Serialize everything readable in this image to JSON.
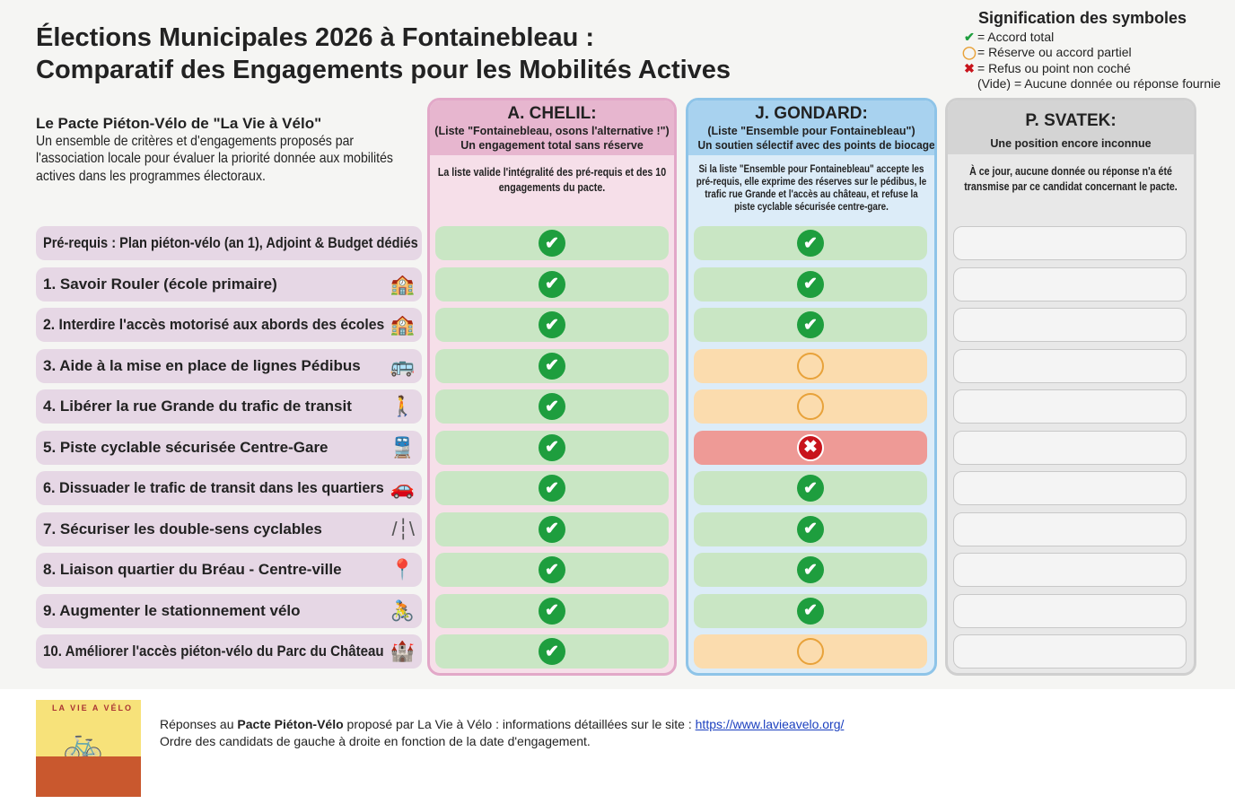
{
  "title_line1": "Élections Municipales 2026 à Fontainebleau :",
  "title_line2": "Comparatif des Engagements pour les Mobilités Actives",
  "legend": {
    "title": "Signification des symboles",
    "items": [
      {
        "symbol": "✔",
        "color": "#1e9e3e",
        "text": "= Accord total"
      },
      {
        "symbol": "◯",
        "color": "#e8a23a",
        "text": "= Réserve ou accord partiel"
      },
      {
        "symbol": "✖",
        "color": "#c8141c",
        "text": "= Refus ou point non coché"
      },
      {
        "symbol": "",
        "color": "",
        "text": "(Vide) = Aucune donnée ou réponse fournie"
      }
    ]
  },
  "pact": {
    "title": "Le Pacte Piéton-Vélo de \"La Vie à Vélo\"",
    "text": "Un ensemble de critères et d'engagements proposés par l'association locale pour évaluer la priorité donnée aux mobilités actives dans les programmes électoraux."
  },
  "candidates": [
    {
      "name": "A. CHELIL:",
      "list": "(Liste \"Fontainebleau, osons l'alternative !\")",
      "summary": "Un engagement total sans réserve",
      "desc": "La liste valide l'intégralité des pré-requis et des 10 engagements du pacte.",
      "answers": [
        "yes",
        "yes",
        "yes",
        "yes",
        "yes",
        "yes",
        "yes",
        "yes",
        "yes",
        "yes",
        "yes"
      ]
    },
    {
      "name": "J. GONDARD:",
      "list": "(Liste \"Ensemble pour Fontainebleau\")",
      "summary": "Un soutien sélectif avec des points de biocage",
      "desc": "Si la liste \"Ensemble pour Fontainebleau\" accepte les pré-requis, elle exprime des réserves sur le pédibus, le trafic rue Grande et l'accès au château, et refuse la piste cyclable sécurisée centre-gare.",
      "answers": [
        "yes",
        "yes",
        "yes",
        "partial",
        "partial",
        "no",
        "yes",
        "yes",
        "yes",
        "yes",
        "partial"
      ]
    },
    {
      "name": "P. SVATEK:",
      "list": "",
      "summary": "Une position encore inconnue",
      "desc": "À ce jour, aucune donnée ou réponse n'a été transmise par ce candidat concernant le pacte.",
      "answers": [
        "empty",
        "empty",
        "empty",
        "empty",
        "empty",
        "empty",
        "empty",
        "empty",
        "empty",
        "empty",
        "empty"
      ]
    }
  ],
  "rows": [
    {
      "label": "Pré-requis : Plan piéton-vélo (an 1), Adjoint & Budget dédiés",
      "icon": ""
    },
    {
      "label": "1. Savoir Rouler (école primaire)",
      "icon": "school-icon"
    },
    {
      "label": "2. Interdire l'accès motorisé aux abords des écoles",
      "icon": "school-icon"
    },
    {
      "label": "3. Aide à la mise en place de lignes Pédibus",
      "icon": "bus-icon"
    },
    {
      "label": "4. Libérer la rue Grande du trafic de transit",
      "icon": "pedestrian-bike-icon"
    },
    {
      "label": "5. Piste cyclable sécurisée Centre-Gare",
      "icon": "train-bike-icon"
    },
    {
      "label": "6. Dissuader le trafic de transit dans les quartiers",
      "icon": "car-icon"
    },
    {
      "label": "7. Sécuriser les double-sens cyclables",
      "icon": "road-icon"
    },
    {
      "label": "8. Liaison quartier du Bréau - Centre-ville",
      "icon": "map-pin-icon"
    },
    {
      "label": "9. Augmenter le stationnement vélo",
      "icon": "cyclist-icon"
    },
    {
      "label": "10. Améliorer l'accès piéton-vélo du Parc du Château",
      "icon": "castle-icon"
    }
  ],
  "footer": {
    "line1_pre": "Réponses au ",
    "line1_bold": "Pacte Piéton-Vélo",
    "line1_mid": " proposé par La Vie à Vélo : informations détaillées sur le site  : ",
    "link": "https://www.lavieavelo.org/",
    "line2": "Ordre des candidats de gauche à droite en fonction de la date d'engagement."
  },
  "logo_text": "LA VIE A VÉLO"
}
